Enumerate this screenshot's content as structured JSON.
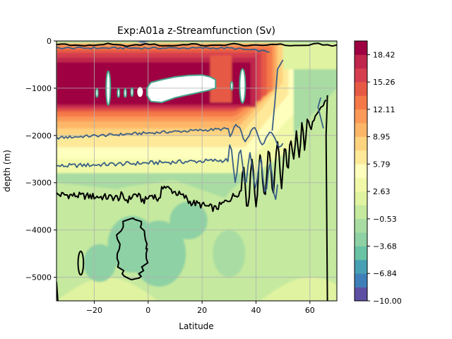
{
  "chart_data": {
    "type": "heatmap",
    "title": "Exp:A01a  z-Streamfunction (Sv)",
    "xlabel": "Latitude",
    "ylabel": "depth (m)",
    "xlim": [
      -34,
      70
    ],
    "ylim": [
      -5500,
      0
    ],
    "x_ticks": [
      -20,
      0,
      20,
      40,
      60
    ],
    "y_ticks": [
      0,
      -1000,
      -2000,
      -3000,
      -4000,
      -5000
    ],
    "grid": true,
    "colorbar": {
      "range": [
        -10.0,
        20.0
      ],
      "tick_labels": [
        "18.42",
        "15.26",
        "12.11",
        "8.95",
        "5.79",
        "2.63",
        "−0.53",
        "−3.68",
        "−6.84",
        "−10.00"
      ],
      "tick_values": [
        18.42,
        15.26,
        12.11,
        8.95,
        5.79,
        2.63,
        -0.53,
        -3.68,
        -6.84,
        -10.0
      ],
      "levels": 19,
      "colormap": "Spectral_r",
      "colors": [
        "#5e4fa2",
        "#3f7fb8",
        "#47a0b3",
        "#68c2a4",
        "#8ed1a4",
        "#a8dca2",
        "#c4e99f",
        "#e0f3a0",
        "#f1f9a9",
        "#fefebd",
        "#fee999",
        "#fed37f",
        "#fdb668",
        "#fb9a58",
        "#f57948",
        "#e65a45",
        "#d53e4f",
        "#c0254b",
        "#9e0142"
      ]
    },
    "contour_lines": [
      {
        "level": 0,
        "color": "#000000"
      },
      {
        "level": 5,
        "color": "#3a5f86"
      },
      {
        "level": 10,
        "color": "#3a5f86"
      },
      {
        "level": 20,
        "color": "#4aa68c"
      }
    ]
  }
}
